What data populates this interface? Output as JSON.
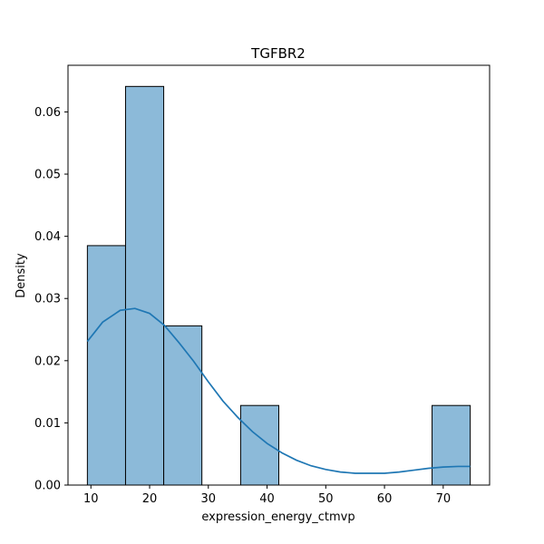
{
  "chart_data": {
    "type": "bar",
    "title": "TGFBR2",
    "xlabel": "expression_energy_ctmvp",
    "ylabel": "Density",
    "xlim": [
      6.1,
      77.9
    ],
    "ylim": [
      0,
      0.0675
    ],
    "xticks": [
      10,
      20,
      30,
      40,
      50,
      60,
      70
    ],
    "yticks": [
      0.0,
      0.01,
      0.02,
      0.03,
      0.04,
      0.05,
      0.06
    ],
    "ytick_labels": [
      "0.00",
      "0.01",
      "0.02",
      "0.03",
      "0.04",
      "0.05",
      "0.06"
    ],
    "bins": [
      {
        "x0": 9.4,
        "x1": 15.9,
        "density": 0.0385
      },
      {
        "x0": 15.9,
        "x1": 22.4,
        "density": 0.0641
      },
      {
        "x0": 22.4,
        "x1": 28.9,
        "density": 0.0256
      },
      {
        "x0": 28.9,
        "x1": 35.5,
        "density": 0.0
      },
      {
        "x0": 35.5,
        "x1": 42.0,
        "density": 0.0128
      },
      {
        "x0": 42.0,
        "x1": 48.5,
        "density": 0.0
      },
      {
        "x0": 48.5,
        "x1": 55.1,
        "density": 0.0
      },
      {
        "x0": 55.1,
        "x1": 61.6,
        "density": 0.0
      },
      {
        "x0": 61.6,
        "x1": 68.1,
        "density": 0.0
      },
      {
        "x0": 68.1,
        "x1": 74.6,
        "density": 0.0128
      }
    ],
    "kde": {
      "x": [
        9.4,
        12,
        15,
        17.5,
        20,
        22.5,
        25,
        27.5,
        30,
        32.5,
        35,
        37.5,
        40,
        42.5,
        45,
        47.5,
        50,
        52.5,
        55,
        57.5,
        60,
        62.5,
        65,
        67.5,
        70,
        72.5,
        74.6
      ],
      "y": [
        0.0231,
        0.0262,
        0.0281,
        0.0284,
        0.0276,
        0.0257,
        0.0229,
        0.0199,
        0.0166,
        0.0135,
        0.0109,
        0.0086,
        0.0067,
        0.0052,
        0.004,
        0.0031,
        0.0025,
        0.0021,
        0.0019,
        0.0019,
        0.0019,
        0.0021,
        0.0024,
        0.0027,
        0.0029,
        0.003,
        0.003
      ]
    },
    "colors": {
      "bar_fill": "#8cbad9",
      "bar_edge": "#000000",
      "kde_line": "#1f77b4"
    },
    "grid": false,
    "legend": "none"
  }
}
